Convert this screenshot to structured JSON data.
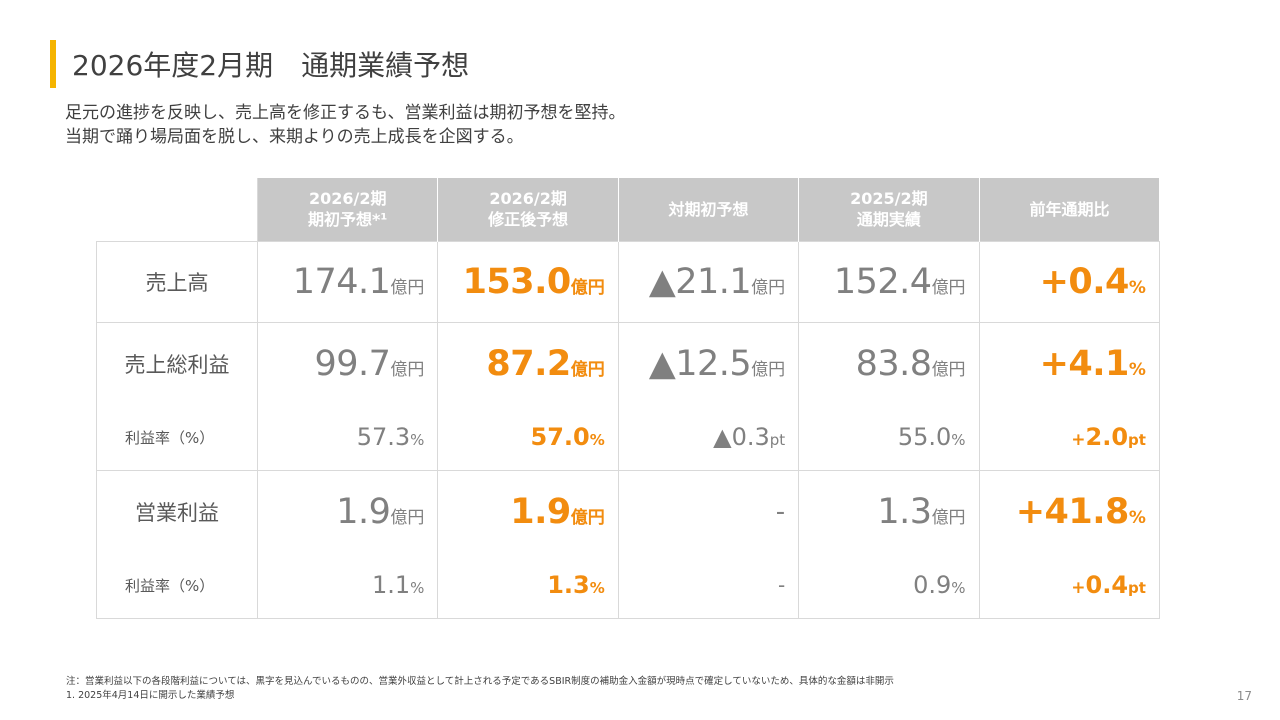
{
  "title": "2026年度2月期　通期業績予想",
  "subtitle": {
    "line1": "足元の進捗を反映し、売上高を修正するも、営業利益は期初予想を堅持。",
    "line2": "当期で踊り場局面を脱し、来期よりの売上成長を企図する。"
  },
  "table": {
    "headers": [
      {
        "line1": "2026/2期",
        "line2": "期初予想*¹"
      },
      {
        "line1": "2026/2期",
        "line2": "修正後予想"
      },
      {
        "line1": "対期初予想",
        "line2": ""
      },
      {
        "line1": "2025/2期",
        "line2": "通期実績"
      },
      {
        "line1": "前年通期比",
        "line2": ""
      }
    ],
    "rows": {
      "sales": {
        "label": "売上高",
        "initial": {
          "value": "174.1",
          "unit": "億円"
        },
        "revised": {
          "value": "153.0",
          "unit": "億円"
        },
        "vs_initial": {
          "value": "▲21.1",
          "unit": "億円"
        },
        "prev_actual": {
          "value": "152.4",
          "unit": "億円"
        },
        "yoy": {
          "value": "+0.4",
          "unit": "%"
        }
      },
      "gross_profit": {
        "label": "売上総利益",
        "initial": {
          "value": "99.7",
          "unit": "億円"
        },
        "revised": {
          "value": "87.2",
          "unit": "億円"
        },
        "vs_initial": {
          "value": "▲12.5",
          "unit": "億円"
        },
        "prev_actual": {
          "value": "83.8",
          "unit": "億円"
        },
        "yoy": {
          "value": "+4.1",
          "unit": "%"
        }
      },
      "gross_margin": {
        "label": "利益率（%）",
        "initial": {
          "value": "57.3",
          "unit": "%"
        },
        "revised": {
          "value": "57.0",
          "unit": "%"
        },
        "vs_initial": {
          "value": "▲0.3",
          "unit": "pt"
        },
        "prev_actual": {
          "value": "55.0",
          "unit": "%"
        },
        "yoy": {
          "sign": "+",
          "value": "2.0",
          "unit": "pt"
        }
      },
      "operating_profit": {
        "label": "営業利益",
        "initial": {
          "value": "1.9",
          "unit": "億円"
        },
        "revised": {
          "value": "1.9",
          "unit": "億円"
        },
        "vs_initial": {
          "value": "-"
        },
        "prev_actual": {
          "value": "1.3",
          "unit": "億円"
        },
        "yoy": {
          "value": "+41.8",
          "unit": "%"
        }
      },
      "operating_margin": {
        "label": "利益率（%）",
        "initial": {
          "value": "1.1",
          "unit": "%"
        },
        "revised": {
          "value": "1.3",
          "unit": "%"
        },
        "vs_initial": {
          "value": "-"
        },
        "prev_actual": {
          "value": "0.9",
          "unit": "%"
        },
        "yoy": {
          "sign": "+",
          "value": "0.4",
          "unit": "pt"
        }
      }
    }
  },
  "notes": {
    "line1": "注：営業利益以下の各段階利益については、黒字を見込んでいるものの、営業外収益として計上される予定であるSBIR制度の補助金入金額が現時点で確定していないため、具体的な金額は非開示",
    "line2": "1.  2025年4月14日に開示した業績予想"
  },
  "page_number": "17",
  "colors": {
    "accent_bar": "#f5b400",
    "highlight": "#f28c0f",
    "header_bg": "#c8c8c8",
    "value_gray": "#808080"
  }
}
